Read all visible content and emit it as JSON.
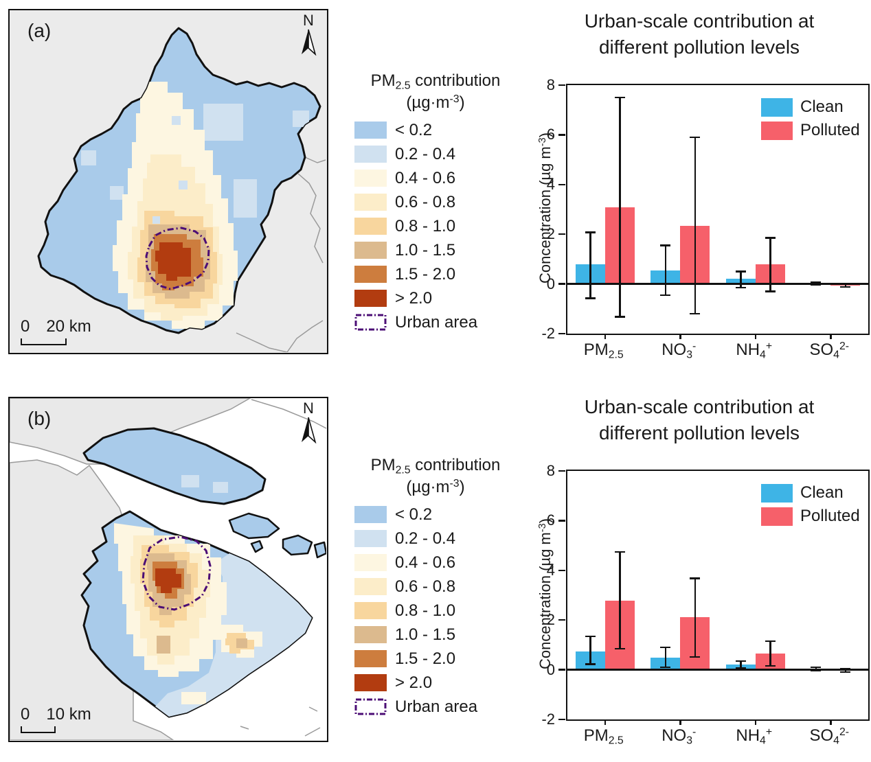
{
  "colors": {
    "clean": "#3eb4e6",
    "polluted": "#f6606a",
    "bins": [
      "#a9cbea",
      "#d0e1f0",
      "#fdf6e1",
      "#fcedc9",
      "#f8d69e",
      "#dcba8e",
      "#cd7d3e",
      "#b23c10"
    ],
    "urban_outline": "#4b0d75",
    "map_background": "#ebebeb",
    "neighbor_line": "#9a9a9a"
  },
  "maps": [
    {
      "panel_label": "(a)",
      "north_label": "N",
      "scale_zero": "0",
      "scale_text": "20 km"
    },
    {
      "panel_label": "(b)",
      "north_label": "N",
      "scale_zero": "0",
      "scale_text": "10 km"
    }
  ],
  "map_legend": {
    "title": {
      "base": "PM",
      "sub": "2.5",
      "rest": " contribution"
    },
    "units": {
      "pre": "(µg·m",
      "sup": "-3",
      "post": ")"
    },
    "items": [
      "< 0.2",
      "0.2 - 0.4",
      "0.4 - 0.6",
      "0.6 - 0.8",
      "0.8 - 1.0",
      "1.0 - 1.5",
      "1.5 - 2.0",
      "> 2.0"
    ],
    "urban_label": "Urban area"
  },
  "chart_data": [
    {
      "type": "bar",
      "title_line1": "Urban-scale contribution at",
      "title_line2": "different pollution levels",
      "ylabel": {
        "pre": "Concentration (µg m",
        "sup": "-3",
        "post": ")"
      },
      "ylim": [
        -2,
        8
      ],
      "yticks": [
        8,
        6,
        4,
        2,
        0,
        -2
      ],
      "grid": false,
      "legend_position": "top-right",
      "categories": [
        {
          "base": "PM",
          "sub": "2.5",
          "sup": ""
        },
        {
          "base": "NO",
          "sub": "3",
          "sup": "-"
        },
        {
          "base": "NH",
          "sub": "4",
          "sup": "+"
        },
        {
          "base": "SO",
          "sub": "4",
          "sup": "2-"
        }
      ],
      "series": [
        {
          "name": "Clean",
          "color_key": "clean",
          "values": [
            0.78,
            0.55,
            0.2,
            0.02
          ],
          "err_low": [
            -0.58,
            -0.45,
            -0.15,
            -0.03
          ],
          "err_high": [
            2.08,
            1.55,
            0.5,
            0.06
          ]
        },
        {
          "name": "Polluted",
          "color_key": "polluted",
          "values": [
            3.08,
            2.35,
            0.78,
            -0.06
          ],
          "err_low": [
            -1.32,
            -1.2,
            -0.3,
            -0.12
          ],
          "err_high": [
            7.5,
            5.9,
            1.85,
            0.02
          ]
        }
      ]
    },
    {
      "type": "bar",
      "title_line1": "Urban-scale contribution at",
      "title_line2": "different pollution levels",
      "ylabel": {
        "pre": "Concentration (µg m",
        "sup": "-3",
        "post": ")"
      },
      "ylim": [
        -2,
        8
      ],
      "yticks": [
        8,
        6,
        4,
        2,
        0,
        -2
      ],
      "grid": false,
      "legend_position": "top-right",
      "categories": [
        {
          "base": "PM",
          "sub": "2.5",
          "sup": ""
        },
        {
          "base": "NO",
          "sub": "3",
          "sup": "-"
        },
        {
          "base": "NH",
          "sub": "4",
          "sup": "+"
        },
        {
          "base": "SO",
          "sub": "4",
          "sup": "2-"
        }
      ],
      "series": [
        {
          "name": "Clean",
          "color_key": "clean",
          "values": [
            0.74,
            0.48,
            0.2,
            0.04
          ],
          "err_low": [
            0.23,
            0.1,
            0.06,
            -0.03
          ],
          "err_high": [
            1.34,
            0.9,
            0.35,
            0.1
          ]
        },
        {
          "name": "Polluted",
          "color_key": "polluted",
          "values": [
            2.78,
            2.12,
            0.65,
            -0.04
          ],
          "err_low": [
            0.85,
            0.51,
            0.15,
            -0.1
          ],
          "err_high": [
            4.74,
            3.68,
            1.15,
            0.03
          ]
        }
      ]
    }
  ]
}
